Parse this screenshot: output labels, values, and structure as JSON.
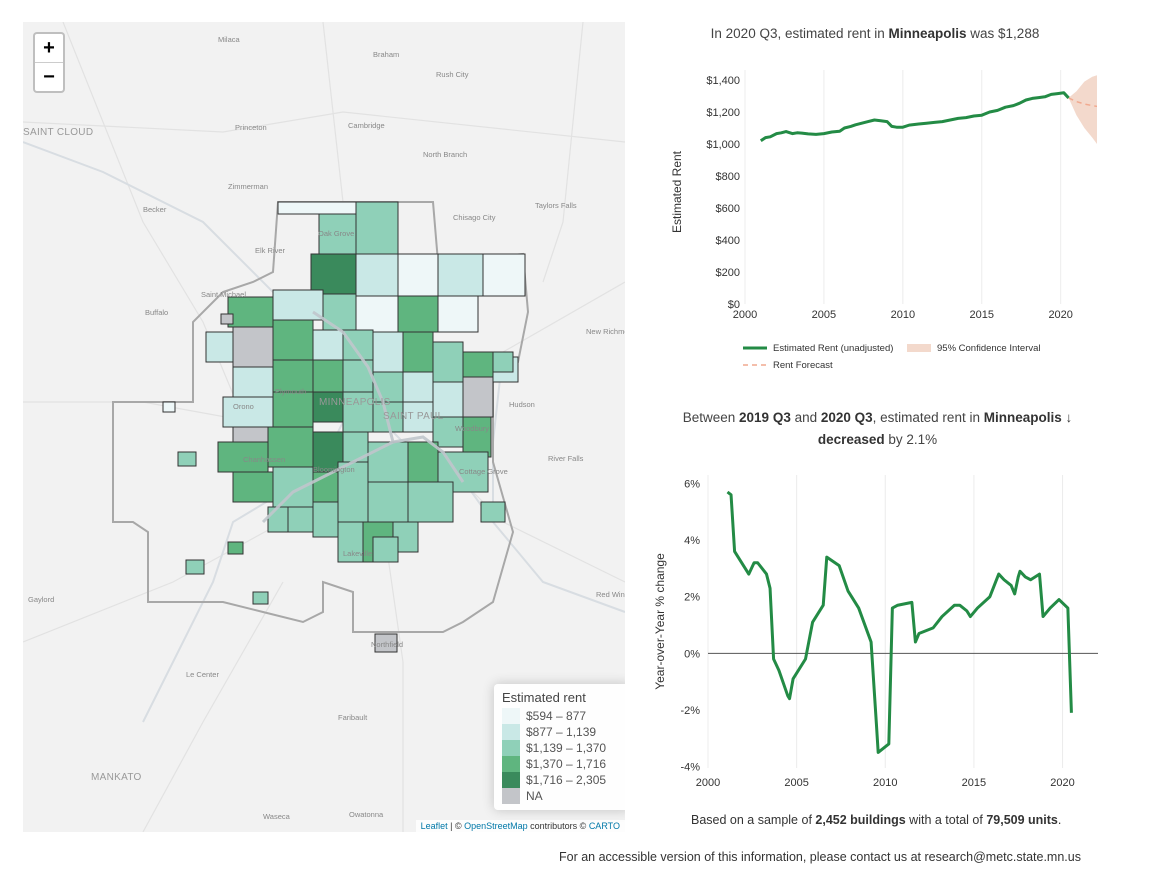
{
  "map": {
    "zoom_in": "+",
    "zoom_out": "−",
    "place_labels": {
      "milaca": "Milaca",
      "braham": "Braham",
      "rush_city": "Rush City",
      "saint_cloud": "SAINT CLOUD",
      "princeton": "Princeton",
      "cambridge": "Cambridge",
      "north_branch": "North Branch",
      "zimmerman": "Zimmerman",
      "becker": "Becker",
      "taylors_falls": "Taylors Falls",
      "oak_grove": "Oak Grove",
      "chisago_city": "Chisago City",
      "elk_river": "Elk River",
      "saint_michael": "Saint Michael",
      "buffalo": "Buffalo",
      "new_richmond": "New Richmond",
      "hudson": "Hudson",
      "minneapolis": "MINNEAPOLIS",
      "saint_paul": "SAINT PAUL",
      "orono": "Orono",
      "woodbury": "Woodbury",
      "river_falls": "River Falls",
      "cottage_grove": "Cottage Grove",
      "bloomington": "Bloomington",
      "chanhassen": "Chanhassen",
      "lakeville": "Lakeville",
      "gaylord": "Gaylord",
      "red_wing": "Red Wing",
      "northfield": "Northfield",
      "le_center": "Le Center",
      "faribault": "Faribault",
      "mankato": "MANKATO",
      "waseca": "Waseca",
      "owatonna": "Owatonna",
      "plymouth": "Plymouth",
      "maple_grove": "Maple Grove",
      "rosemount": "Rosemount"
    },
    "legend": {
      "title": "Estimated rent",
      "items": [
        {
          "label": "$594 – 877",
          "color": "#eef7f8"
        },
        {
          "label": "$877 – 1,139",
          "color": "#c9e8e6"
        },
        {
          "label": "$1,139 – 1,370",
          "color": "#8fd0b8"
        },
        {
          "label": "$1,370 – 1,716",
          "color": "#5fb57f"
        },
        {
          "label": "$1,716 – 2,305",
          "color": "#3a8a5c"
        },
        {
          "label": "NA",
          "color": "#c3c5c9"
        }
      ]
    },
    "attribution": {
      "leaflet": "Leaflet",
      "sep1": " | © ",
      "osm": "OpenStreetMap",
      "mid": " contributors © ",
      "carto": "CARTO"
    }
  },
  "rent_chart": {
    "title_pre": "In 2020 Q3, estimated rent in ",
    "title_city": "Minneapolis",
    "title_post": " was $1,288",
    "ylabel": "Estimated Rent",
    "yticks": [
      "$0",
      "$200",
      "$400",
      "$600",
      "$800",
      "$1,000",
      "$1,200",
      "$1,400"
    ],
    "xticks": [
      "2000",
      "2005",
      "2010",
      "2015",
      "2020"
    ],
    "legend": {
      "series": "Estimated Rent (unadjusted)",
      "ci": "95% Confidence Interval",
      "forecast": "Rent Forecast"
    },
    "colors": {
      "series": "#238b45",
      "ci": "#f3d9cc",
      "forecast": "#f1a98f"
    }
  },
  "yoy_chart": {
    "title_line1_a": "Between ",
    "title_line1_b": "2019 Q3",
    "title_line1_c": " and ",
    "title_line1_d": "2020 Q3",
    "title_line1_e": ", estimated rent in ",
    "title_line1_f": "Minneapolis",
    "arrow": "🡓",
    "title_line2_a": "decreased",
    "title_line2_b": " by 2.1%",
    "ylabel": "Year-over-Year % change",
    "yticks": [
      "-4%",
      "-2%",
      "0%",
      "2%",
      "4%",
      "6%"
    ],
    "xticks": [
      "2000",
      "2005",
      "2010",
      "2015",
      "2020"
    ],
    "footer_a": "Based on a sample of ",
    "footer_b": "2,452 buildings",
    "footer_c": " with a total of ",
    "footer_d": "79,509 units",
    "footer_e": "."
  },
  "chart_data": [
    {
      "type": "line",
      "title": "In 2020 Q3, estimated rent in Minneapolis was $1,288",
      "xlabel": "",
      "ylabel": "Estimated Rent",
      "xlim": [
        2000,
        2022.3
      ],
      "ylim": [
        0,
        1400
      ],
      "series": [
        {
          "name": "Estimated Rent (unadjusted)",
          "x": [
            2001.0,
            2001.3,
            2001.6,
            2002.0,
            2002.3,
            2002.6,
            2003.0,
            2003.3,
            2003.6,
            2004.0,
            2004.5,
            2005.0,
            2005.5,
            2006.0,
            2006.3,
            2006.7,
            2007.0,
            2007.4,
            2007.8,
            2008.2,
            2008.6,
            2009.0,
            2009.3,
            2009.6,
            2010.0,
            2010.4,
            2011.0,
            2011.5,
            2012.0,
            2012.5,
            2013.0,
            2013.5,
            2014.0,
            2014.5,
            2015.0,
            2015.5,
            2016.0,
            2016.5,
            2017.0,
            2017.4,
            2017.8,
            2018.2,
            2018.6,
            2019.0,
            2019.4,
            2019.8,
            2020.2,
            2020.5
          ],
          "y": [
            1020,
            1040,
            1045,
            1065,
            1070,
            1078,
            1065,
            1070,
            1068,
            1063,
            1060,
            1065,
            1075,
            1080,
            1100,
            1110,
            1120,
            1130,
            1140,
            1150,
            1145,
            1140,
            1110,
            1105,
            1105,
            1118,
            1125,
            1130,
            1135,
            1140,
            1150,
            1160,
            1165,
            1175,
            1180,
            1200,
            1210,
            1230,
            1240,
            1255,
            1275,
            1285,
            1290,
            1295,
            1310,
            1315,
            1320,
            1288
          ]
        },
        {
          "name": "Rent Forecast",
          "x": [
            2020.5,
            2021.0,
            2021.5,
            2022.0,
            2022.3
          ],
          "y": [
            1288,
            1265,
            1250,
            1240,
            1235
          ]
        },
        {
          "name": "95% Confidence Interval",
          "x": [
            2020.5,
            2021.0,
            2021.5,
            2022.0,
            2022.3
          ],
          "y_lower": [
            1288,
            1180,
            1100,
            1040,
            1000
          ],
          "y_upper": [
            1288,
            1330,
            1390,
            1420,
            1430
          ]
        }
      ],
      "legend": "bottom"
    },
    {
      "type": "line",
      "title": "Between 2019 Q3 and 2020 Q3, estimated rent in Minneapolis decreased by 2.1%",
      "xlabel": "",
      "ylabel": "Year-over-Year % change",
      "xlim": [
        2000,
        2022
      ],
      "ylim": [
        -4,
        6
      ],
      "series": [
        {
          "name": "",
          "x": [
            2001.1,
            2001.3,
            2001.5,
            2002.3,
            2002.6,
            2002.8,
            2003.3,
            2003.5,
            2003.7,
            2004.0,
            2004.5,
            2004.6,
            2004.8,
            2005.5,
            2005.9,
            2006.5,
            2006.7,
            2007.4,
            2007.9,
            2008.1,
            2008.5,
            2009.2,
            2009.5,
            2009.6,
            2010.2,
            2010.4,
            2010.7,
            2011.5,
            2011.7,
            2011.9,
            2012.7,
            2013.2,
            2013.9,
            2014.2,
            2014.6,
            2014.8,
            2015.2,
            2015.9,
            2016.4,
            2016.7,
            2017.1,
            2017.3,
            2017.5,
            2017.6,
            2017.9,
            2018.2,
            2018.7,
            2018.9,
            2019.3,
            2019.8,
            2020.3,
            2020.5
          ],
          "y": [
            5.7,
            5.6,
            3.6,
            2.8,
            3.2,
            3.2,
            2.8,
            2.3,
            -0.2,
            -0.6,
            -1.5,
            -1.6,
            -0.9,
            -0.2,
            1.1,
            1.7,
            3.4,
            3.1,
            2.2,
            2.0,
            1.6,
            0.4,
            -2.5,
            -3.5,
            -3.2,
            1.6,
            1.7,
            1.8,
            0.4,
            0.7,
            0.9,
            1.3,
            1.7,
            1.7,
            1.5,
            1.3,
            1.6,
            2.0,
            2.8,
            2.6,
            2.4,
            2.1,
            2.7,
            2.9,
            2.7,
            2.6,
            2.8,
            1.3,
            1.6,
            1.9,
            1.6,
            -2.1
          ]
        }
      ]
    }
  ],
  "footer": {
    "text": "For an accessible version of this information, please contact us at research@metc.state.mn.us"
  }
}
